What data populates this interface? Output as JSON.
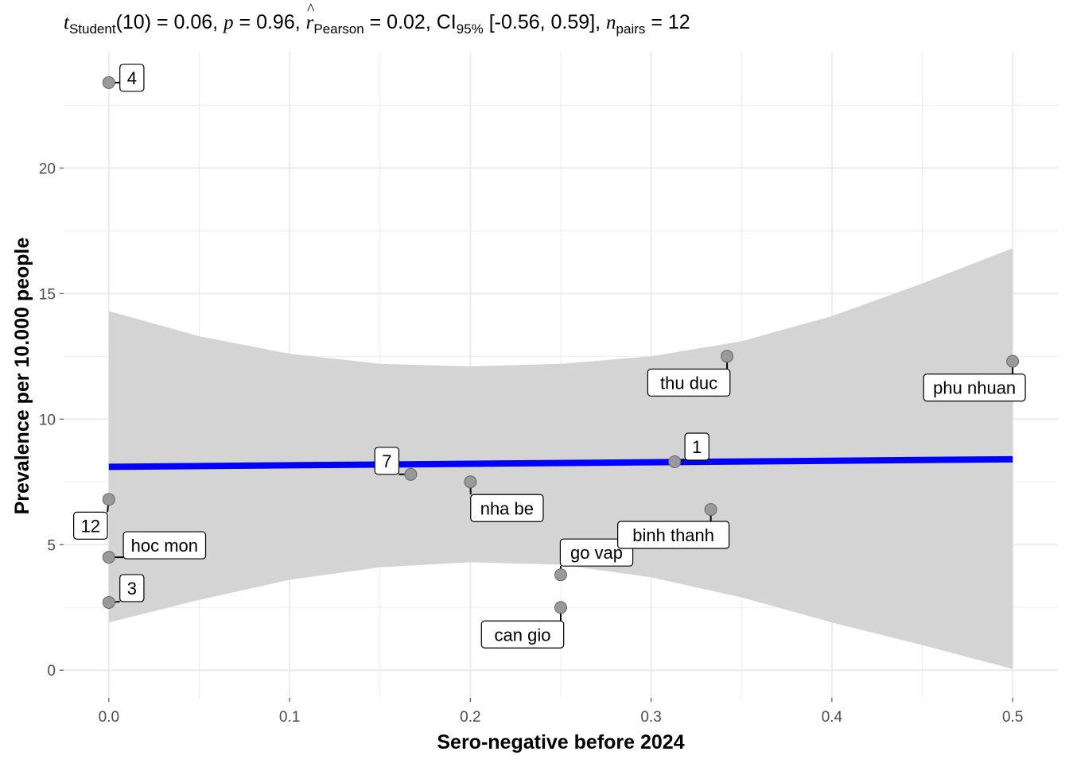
{
  "subtitle": {
    "t_symbol": "t",
    "t_sub": "Student",
    "t_df": "(10)",
    "t_value": " = 0.06, ",
    "p_symbol": "p",
    "p_value": " = 0.96, ",
    "r_symbol": "r",
    "r_sub": "Pearson",
    "r_value": " = 0.02, CI",
    "ci_sub": "95%",
    "ci_value": " [-0.56, 0.59], ",
    "n_symbol": "n",
    "n_sub": "pairs",
    "n_value": " = 12"
  },
  "chart_data": {
    "type": "scatter",
    "title": "",
    "xlabel": "Sero-negative before 2024",
    "ylabel": "Prevalence per 10.000 people",
    "xlim": [
      -0.025,
      0.525
    ],
    "ylim": [
      -1.1,
      24.6
    ],
    "x_ticks": [
      0.0,
      0.1,
      0.2,
      0.3,
      0.4,
      0.5
    ],
    "x_tick_labels": [
      "0.0",
      "0.1",
      "0.2",
      "0.3",
      "0.4",
      "0.5"
    ],
    "y_ticks": [
      0,
      5,
      10,
      15,
      20
    ],
    "y_tick_labels": [
      "0",
      "5",
      "10",
      "15",
      "20"
    ],
    "grid": true,
    "points": [
      {
        "x": 0.0,
        "y": 23.4,
        "label": "4"
      },
      {
        "x": 0.0,
        "y": 6.8,
        "label": "12"
      },
      {
        "x": 0.0,
        "y": 4.5,
        "label": "hoc mon"
      },
      {
        "x": 0.0,
        "y": 2.7,
        "label": "3"
      },
      {
        "x": 0.167,
        "y": 7.8,
        "label": "7"
      },
      {
        "x": 0.2,
        "y": 7.5,
        "label": "nha be"
      },
      {
        "x": 0.25,
        "y": 3.8,
        "label": "go vap"
      },
      {
        "x": 0.25,
        "y": 2.5,
        "label": "can gio"
      },
      {
        "x": 0.313,
        "y": 8.3,
        "label": "1"
      },
      {
        "x": 0.333,
        "y": 6.4,
        "label": "binh thanh"
      },
      {
        "x": 0.342,
        "y": 12.5,
        "label": "thu duc"
      },
      {
        "x": 0.5,
        "y": 12.3,
        "label": "phu nhuan"
      }
    ],
    "fit_line": {
      "x": [
        0.0,
        0.5
      ],
      "y": [
        8.1,
        8.4
      ],
      "color": "#0000ff"
    },
    "confidence_band": {
      "x": [
        0.0,
        0.05,
        0.1,
        0.15,
        0.2,
        0.25,
        0.3,
        0.35,
        0.4,
        0.45,
        0.5
      ],
      "upper": [
        14.3,
        13.3,
        12.6,
        12.2,
        12.1,
        12.2,
        12.5,
        13.1,
        14.1,
        15.4,
        16.8
      ],
      "lower": [
        1.9,
        2.8,
        3.6,
        4.1,
        4.3,
        4.2,
        3.7,
        2.9,
        1.9,
        1.0,
        0.05
      ],
      "color": "#d4d4d4"
    },
    "point_color": "#999999",
    "grid_color": "#ebebeb",
    "tick_text_color": "#4d4d4d"
  }
}
